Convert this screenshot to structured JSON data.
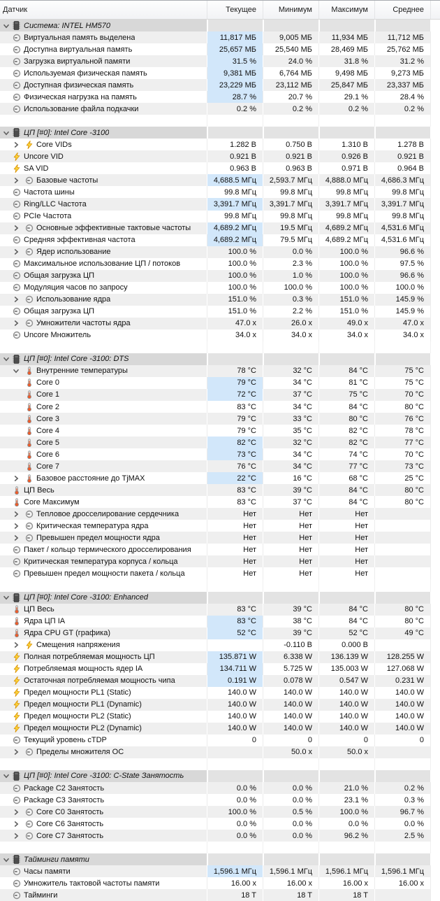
{
  "columns": [
    {
      "key": "sensor",
      "label": "Датчик"
    },
    {
      "key": "current",
      "label": "Текущее"
    },
    {
      "key": "minimum",
      "label": "Минимум"
    },
    {
      "key": "maximum",
      "label": "Максимум"
    },
    {
      "key": "average",
      "label": "Среднее"
    }
  ],
  "colors": {
    "highlight_cell": "#d2e7fa",
    "stripe_row": "#efefef",
    "section_row": "#d8d8d8",
    "bolt_icon": "#ffd83d",
    "thermometer_icon": "#f05a28",
    "gauge_icon": "#8f8f8f"
  },
  "sections": [
    {
      "title": "Система: INTEL HM570",
      "rows": [
        {
          "label": "Виртуальная память выделена",
          "icon": "gauge",
          "stripe": true,
          "hl": true,
          "values": [
            "11,817 МБ",
            "9,005 МБ",
            "11,934 МБ",
            "11,712 МБ"
          ]
        },
        {
          "label": "Доступна виртуальная память",
          "icon": "gauge",
          "stripe": false,
          "hl": true,
          "values": [
            "25,657 МБ",
            "25,540 МБ",
            "28,469 МБ",
            "25,762 МБ"
          ]
        },
        {
          "label": "Загрузка виртуальной памяти",
          "icon": "gauge",
          "stripe": true,
          "hl": true,
          "values": [
            "31.5 %",
            "24.0 %",
            "31.8 %",
            "31.2 %"
          ]
        },
        {
          "label": "Используемая физическая память",
          "icon": "gauge",
          "stripe": false,
          "hl": true,
          "values": [
            "9,381 МБ",
            "6,764 МБ",
            "9,498 МБ",
            "9,273 МБ"
          ]
        },
        {
          "label": "Доступная физическая память",
          "icon": "gauge",
          "stripe": true,
          "hl": true,
          "values": [
            "23,229 МБ",
            "23,112 МБ",
            "25,847 МБ",
            "23,337 МБ"
          ]
        },
        {
          "label": "Физическая нагрузка на память",
          "icon": "gauge",
          "stripe": false,
          "hl": true,
          "values": [
            "28.7 %",
            "20.7 %",
            "29.1 %",
            "28.4 %"
          ]
        },
        {
          "label": "Использование файла подкачки",
          "icon": "gauge",
          "stripe": true,
          "hl": false,
          "values": [
            "0.2 %",
            "0.2 %",
            "0.2 %",
            "0.2 %"
          ]
        }
      ]
    },
    {
      "title": "ЦП [#0]: Intel Core -3100",
      "rows": [
        {
          "label": "Core VIDs",
          "icon": "bolt",
          "chevron": "collapsed",
          "stripe": false,
          "hl": false,
          "values": [
            "1.282 В",
            "0.750 В",
            "1.310 В",
            "1.278 В"
          ]
        },
        {
          "label": "Uncore VID",
          "icon": "bolt",
          "stripe": true,
          "hl": false,
          "values": [
            "0.921 В",
            "0.921 В",
            "0.926 В",
            "0.921 В"
          ]
        },
        {
          "label": "SA VID",
          "icon": "bolt",
          "stripe": false,
          "hl": false,
          "values": [
            "0.963 В",
            "0.963 В",
            "0.971 В",
            "0.964 В"
          ]
        },
        {
          "label": "Базовые частоты",
          "icon": "gauge",
          "chevron": "collapsed",
          "stripe": true,
          "hl": true,
          "values": [
            "4,688.5 МГц",
            "2,593.7 МГц",
            "4,888.0 МГц",
            "4,686.3 МГц"
          ]
        },
        {
          "label": "Частота шины",
          "icon": "gauge",
          "stripe": false,
          "hl": false,
          "values": [
            "99.8 МГц",
            "99.8 МГц",
            "99.8 МГц",
            "99.8 МГц"
          ]
        },
        {
          "label": "Ring/LLC Частота",
          "icon": "gauge",
          "stripe": true,
          "hl": true,
          "values": [
            "3,391.7 МГц",
            "3,391.7 МГц",
            "3,391.7 МГц",
            "3,391.7 МГц"
          ]
        },
        {
          "label": "PCIe Частота",
          "icon": "gauge",
          "stripe": false,
          "hl": false,
          "values": [
            "99.8 МГц",
            "99.8 МГц",
            "99.8 МГц",
            "99.8 МГц"
          ]
        },
        {
          "label": "Основные эффективные тактовые частоты",
          "icon": "gauge",
          "chevron": "collapsed",
          "stripe": true,
          "hl": true,
          "values": [
            "4,689.2 МГц",
            "19.5 МГц",
            "4,689.2 МГц",
            "4,531.6 МГц"
          ]
        },
        {
          "label": "Средняя эффективная частота",
          "icon": "gauge",
          "stripe": false,
          "hl": true,
          "values": [
            "4,689.2 МГц",
            "79.5 МГц",
            "4,689.2 МГц",
            "4,531.6 МГц"
          ]
        },
        {
          "label": "Ядер использование",
          "icon": "gauge",
          "chevron": "collapsed",
          "stripe": true,
          "hl": false,
          "values": [
            "100.0 %",
            "0.0 %",
            "100.0 %",
            "96.6 %"
          ]
        },
        {
          "label": "Максимальное использование ЦП / потоков",
          "icon": "gauge",
          "stripe": false,
          "hl": false,
          "values": [
            "100.0 %",
            "2.3 %",
            "100.0 %",
            "97.5 %"
          ]
        },
        {
          "label": "Общая загрузка ЦП",
          "icon": "gauge",
          "stripe": true,
          "hl": false,
          "values": [
            "100.0 %",
            "1.0 %",
            "100.0 %",
            "96.6 %"
          ]
        },
        {
          "label": "Модуляция часов по запросу",
          "icon": "gauge",
          "stripe": false,
          "hl": false,
          "values": [
            "100.0 %",
            "100.0 %",
            "100.0 %",
            "100.0 %"
          ]
        },
        {
          "label": "Использование ядра",
          "icon": "gauge",
          "chevron": "collapsed",
          "stripe": true,
          "hl": false,
          "values": [
            "151.0 %",
            "0.3 %",
            "151.0 %",
            "145.9 %"
          ]
        },
        {
          "label": "Общая загрузка ЦП",
          "icon": "gauge",
          "stripe": false,
          "hl": false,
          "values": [
            "151.0 %",
            "2.2 %",
            "151.0 %",
            "145.9 %"
          ]
        },
        {
          "label": "Умножители частоты ядра",
          "icon": "gauge",
          "chevron": "collapsed",
          "stripe": true,
          "hl": false,
          "values": [
            "47.0 x",
            "26.0 x",
            "49.0 x",
            "47.0 x"
          ]
        },
        {
          "label": "Uncore Множитель",
          "icon": "gauge",
          "stripe": false,
          "hl": false,
          "values": [
            "34.0 x",
            "34.0 x",
            "34.0 x",
            "34.0 x"
          ]
        }
      ]
    },
    {
      "title": "ЦП [#0]: Intel Core -3100: DTS",
      "rows": [
        {
          "label": "Внутренние температуры",
          "icon": "therm",
          "chevron": "expanded",
          "stripe": true,
          "hl": false,
          "values": [
            "78 °C",
            "32 °C",
            "84 °C",
            "75 °C"
          ]
        },
        {
          "label": "Core 0",
          "icon": "therm",
          "child": true,
          "stripe": false,
          "hl": true,
          "values": [
            "79 °C",
            "34 °C",
            "81 °C",
            "75 °C"
          ]
        },
        {
          "label": "Core 1",
          "icon": "therm",
          "child": true,
          "stripe": true,
          "hl": true,
          "values": [
            "72 °C",
            "37 °C",
            "75 °C",
            "70 °C"
          ]
        },
        {
          "label": "Core 2",
          "icon": "therm",
          "child": true,
          "stripe": false,
          "hl": false,
          "values": [
            "83 °C",
            "34 °C",
            "84 °C",
            "80 °C"
          ]
        },
        {
          "label": "Core 3",
          "icon": "therm",
          "child": true,
          "stripe": true,
          "hl": false,
          "values": [
            "79 °C",
            "33 °C",
            "80 °C",
            "76 °C"
          ]
        },
        {
          "label": "Core 4",
          "icon": "therm",
          "child": true,
          "stripe": false,
          "hl": false,
          "values": [
            "79 °C",
            "35 °C",
            "82 °C",
            "78 °C"
          ]
        },
        {
          "label": "Core 5",
          "icon": "therm",
          "child": true,
          "stripe": true,
          "hl": true,
          "values": [
            "82 °C",
            "32 °C",
            "82 °C",
            "77 °C"
          ]
        },
        {
          "label": "Core 6",
          "icon": "therm",
          "child": true,
          "stripe": false,
          "hl": true,
          "values": [
            "73 °C",
            "34 °C",
            "74 °C",
            "70 °C"
          ]
        },
        {
          "label": "Core 7",
          "icon": "therm",
          "child": true,
          "stripe": true,
          "hl": false,
          "values": [
            "76 °C",
            "34 °C",
            "77 °C",
            "73 °C"
          ]
        },
        {
          "label": "Базовое расстояние до TjMAX",
          "icon": "therm",
          "chevron": "collapsed",
          "stripe": false,
          "hl": true,
          "values": [
            "22 °C",
            "16 °C",
            "68 °C",
            "25 °C"
          ]
        },
        {
          "label": "ЦП Весь",
          "icon": "therm",
          "stripe": true,
          "hl": false,
          "values": [
            "83 °C",
            "39 °C",
            "84 °C",
            "80 °C"
          ]
        },
        {
          "label": "Core Максимум",
          "icon": "therm",
          "stripe": false,
          "hl": false,
          "values": [
            "83 °C",
            "37 °C",
            "84 °C",
            "80 °C"
          ]
        },
        {
          "label": "Тепловое дросселирование сердечника",
          "icon": "gauge",
          "chevron": "collapsed",
          "stripe": true,
          "hl": false,
          "values": [
            "Нет",
            "Нет",
            "Нет",
            ""
          ]
        },
        {
          "label": "Критическая температура ядра",
          "icon": "gauge",
          "chevron": "collapsed",
          "stripe": false,
          "hl": false,
          "values": [
            "Нет",
            "Нет",
            "Нет",
            ""
          ]
        },
        {
          "label": "Превышен предел мощности ядра",
          "icon": "gauge",
          "chevron": "collapsed",
          "stripe": true,
          "hl": false,
          "values": [
            "Нет",
            "Нет",
            "Нет",
            ""
          ]
        },
        {
          "label": "Пакет / кольцо термического дросселирования",
          "icon": "gauge",
          "stripe": false,
          "hl": false,
          "values": [
            "Нет",
            "Нет",
            "Нет",
            ""
          ]
        },
        {
          "label": "Критическая температура корпуса / кольца",
          "icon": "gauge",
          "stripe": true,
          "hl": false,
          "values": [
            "Нет",
            "Нет",
            "Нет",
            ""
          ]
        },
        {
          "label": "Превышен предел мощности пакета / кольца",
          "icon": "gauge",
          "stripe": false,
          "hl": false,
          "values": [
            "Нет",
            "Нет",
            "Нет",
            ""
          ]
        }
      ]
    },
    {
      "title": "ЦП [#0]: Intel Core -3100: Enhanced",
      "rows": [
        {
          "label": "ЦП Весь",
          "icon": "therm",
          "stripe": true,
          "hl": false,
          "values": [
            "83 °C",
            "39 °C",
            "84 °C",
            "80 °C"
          ]
        },
        {
          "label": "Ядра ЦП IA",
          "icon": "therm",
          "stripe": false,
          "hl": true,
          "values": [
            "83 °C",
            "38 °C",
            "84 °C",
            "80 °C"
          ]
        },
        {
          "label": "Ядра CPU GT (графика)",
          "icon": "therm",
          "stripe": true,
          "hl": true,
          "values": [
            "52 °C",
            "39 °C",
            "52 °C",
            "49 °C"
          ]
        },
        {
          "label": "Смещения напряжения",
          "icon": "bolt",
          "chevron": "collapsed",
          "stripe": false,
          "hl": false,
          "values": [
            "",
            "-0.110 В",
            "0.000 В",
            ""
          ]
        },
        {
          "label": "Полная потребляемая мощность ЦП",
          "icon": "bolt",
          "stripe": true,
          "hl": true,
          "values": [
            "135.871 W",
            "6.338 W",
            "136.139 W",
            "128.255 W"
          ]
        },
        {
          "label": "Потребляемая мощность ядер IA",
          "icon": "bolt",
          "stripe": false,
          "hl": true,
          "values": [
            "134.711 W",
            "5.725 W",
            "135.003 W",
            "127.068 W"
          ]
        },
        {
          "label": "Остаточная потребляемая мощность чипа",
          "icon": "bolt",
          "stripe": true,
          "hl": true,
          "values": [
            "0.191 W",
            "0.078 W",
            "0.547 W",
            "0.231 W"
          ]
        },
        {
          "label": "Предел мощности PL1 (Static)",
          "icon": "bolt",
          "stripe": false,
          "hl": false,
          "values": [
            "140.0 W",
            "140.0 W",
            "140.0 W",
            "140.0 W"
          ]
        },
        {
          "label": "Предел мощности PL1 (Dynamic)",
          "icon": "bolt",
          "stripe": true,
          "hl": false,
          "values": [
            "140.0 W",
            "140.0 W",
            "140.0 W",
            "140.0 W"
          ]
        },
        {
          "label": "Предел мощности PL2 (Static)",
          "icon": "bolt",
          "stripe": false,
          "hl": false,
          "values": [
            "140.0 W",
            "140.0 W",
            "140.0 W",
            "140.0 W"
          ]
        },
        {
          "label": "Предел мощности PL2 (Dynamic)",
          "icon": "bolt",
          "stripe": true,
          "hl": false,
          "values": [
            "140.0 W",
            "140.0 W",
            "140.0 W",
            "140.0 W"
          ]
        },
        {
          "label": "Текущий уровень cTDP",
          "icon": "gauge",
          "stripe": false,
          "hl": false,
          "values": [
            "0",
            "0",
            "0",
            "0"
          ]
        },
        {
          "label": "Пределы множителя ОС",
          "icon": "gauge",
          "chevron": "collapsed",
          "stripe": true,
          "hl": false,
          "values": [
            "",
            "50.0 x",
            "50.0 x",
            ""
          ]
        }
      ]
    },
    {
      "title": "ЦП [#0]: Intel Core -3100: C-State Занятость",
      "rows": [
        {
          "label": "Package C2 Занятость",
          "icon": "gauge",
          "stripe": true,
          "hl": false,
          "values": [
            "0.0 %",
            "0.0 %",
            "21.0 %",
            "0.2 %"
          ]
        },
        {
          "label": "Package C3 Занятость",
          "icon": "gauge",
          "stripe": false,
          "hl": false,
          "values": [
            "0.0 %",
            "0.0 %",
            "23.1 %",
            "0.3 %"
          ]
        },
        {
          "label": "Core C0 Занятость",
          "icon": "gauge",
          "chevron": "collapsed",
          "stripe": true,
          "hl": false,
          "values": [
            "100.0 %",
            "0.5 %",
            "100.0 %",
            "96.7 %"
          ]
        },
        {
          "label": "Core C6 Занятость",
          "icon": "gauge",
          "chevron": "collapsed",
          "stripe": false,
          "hl": false,
          "values": [
            "0.0 %",
            "0.0 %",
            "0.0 %",
            "0.0 %"
          ]
        },
        {
          "label": "Core C7 Занятость",
          "icon": "gauge",
          "chevron": "collapsed",
          "stripe": true,
          "hl": false,
          "values": [
            "0.0 %",
            "0.0 %",
            "96.2 %",
            "2.5 %"
          ]
        }
      ]
    },
    {
      "title": "Тайминги памяти",
      "rows": [
        {
          "label": "Часы памяти",
          "icon": "gauge",
          "stripe": true,
          "hl": true,
          "values": [
            "1,596.1 МГц",
            "1,596.1 МГц",
            "1,596.1 МГц",
            "1,596.1 МГц"
          ]
        },
        {
          "label": "Умножитель тактовой частоты памяти",
          "icon": "gauge",
          "stripe": false,
          "hl": false,
          "values": [
            "16.00 x",
            "16.00 x",
            "16.00 x",
            "16.00 x"
          ]
        },
        {
          "label": "Тайминги",
          "icon": "gauge",
          "stripe": true,
          "hl": false,
          "values": [
            "18 T",
            "18 T",
            "18 T",
            ""
          ]
        }
      ]
    }
  ]
}
